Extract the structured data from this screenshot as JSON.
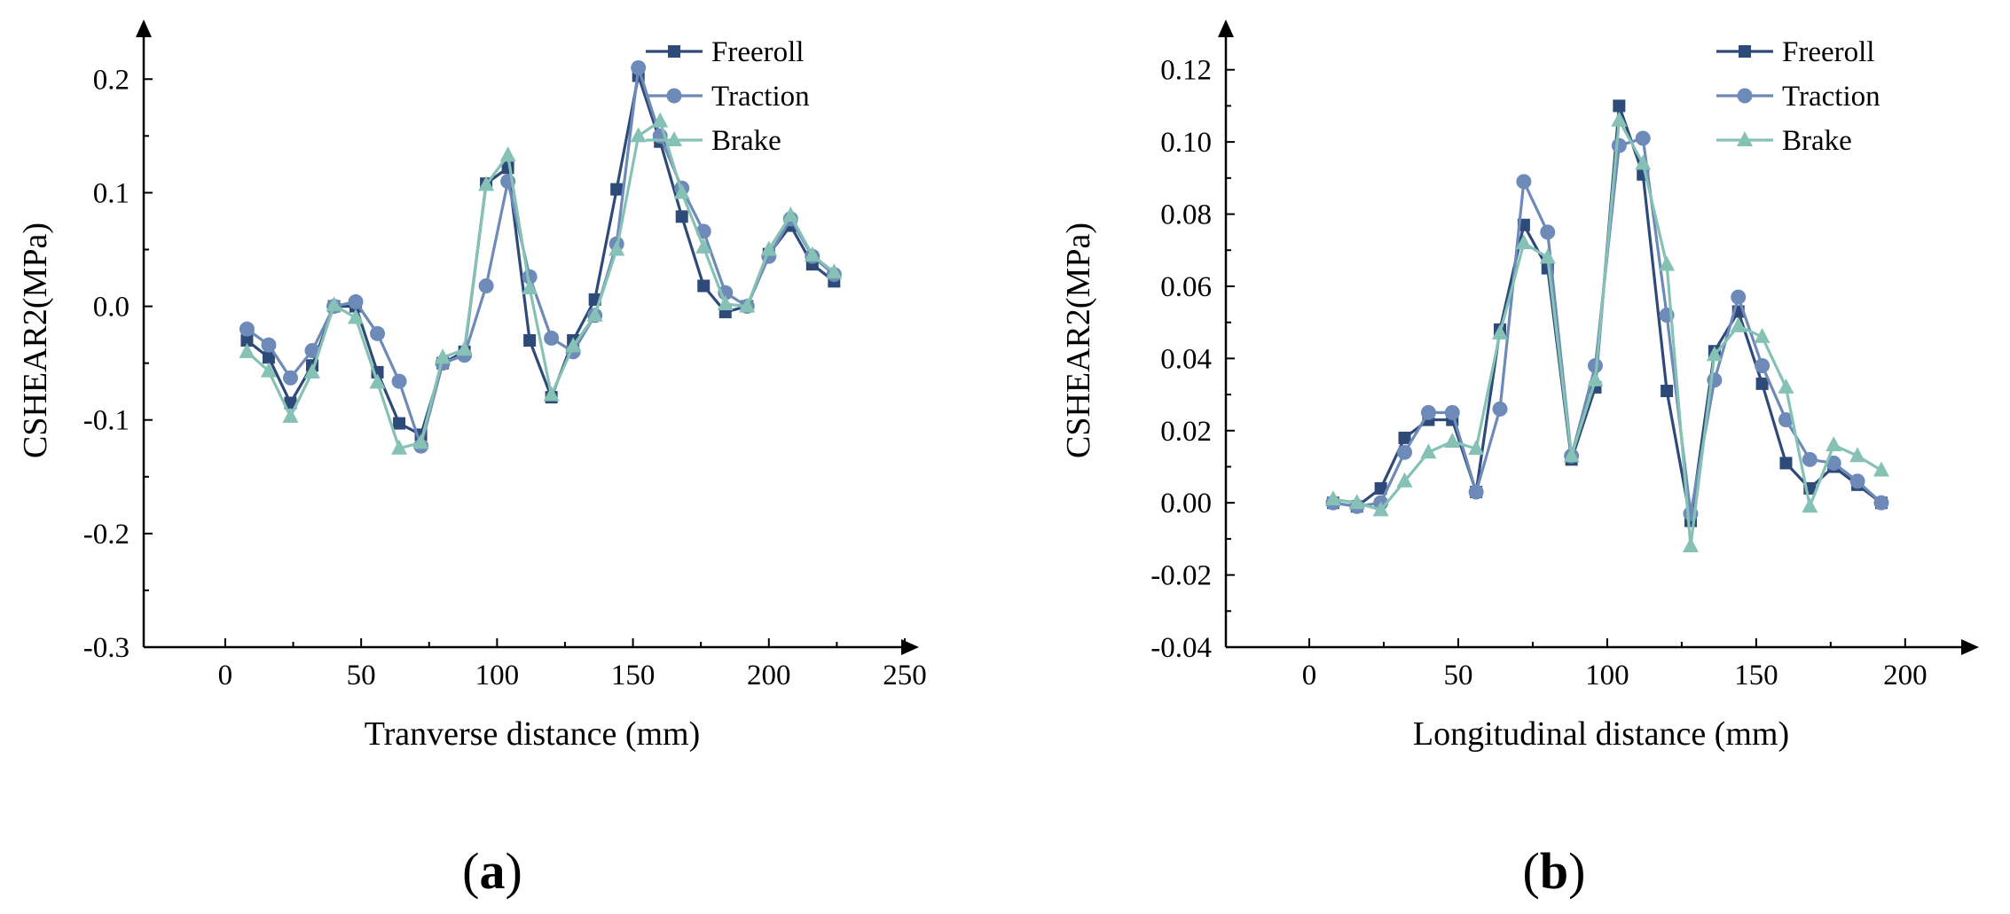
{
  "colors": {
    "freeroll": "#2e4a78",
    "traction": "#6d8ab8",
    "brake": "#85c1b4",
    "axis": "#000000"
  },
  "chart_data": [
    {
      "type": "line",
      "panel_label": {
        "open": "(",
        "letter": "a",
        "close": ")"
      },
      "xlabel": "Tranverse distance (mm)",
      "ylabel": "CSHEAR2(MPa)",
      "xlim": [
        -30,
        250
      ],
      "ylim": [
        -0.3,
        0.24
      ],
      "xticks": [
        0,
        50,
        100,
        150,
        200,
        250
      ],
      "xtick_labels": [
        "0",
        "50",
        "100",
        "150",
        "200",
        "250"
      ],
      "yticks": [
        -0.3,
        -0.2,
        -0.1,
        0.0,
        0.1,
        0.2
      ],
      "ytick_labels": [
        "-0.3",
        "-0.2",
        "-0.1",
        "0.0",
        "0.1",
        "0.2"
      ],
      "legend_position": "top-right",
      "x": [
        8,
        16,
        24,
        32,
        40,
        48,
        56,
        64,
        72,
        80,
        88,
        96,
        104,
        112,
        120,
        128,
        136,
        144,
        152,
        160,
        168,
        176,
        184,
        192,
        200,
        208,
        216,
        224
      ],
      "series": [
        {
          "name": "Freeroll",
          "marker": "square",
          "color_key": "freeroll",
          "values": [
            -0.03,
            -0.045,
            -0.085,
            -0.052,
            0.0,
            0.0,
            -0.058,
            -0.103,
            -0.113,
            -0.05,
            -0.04,
            0.108,
            0.122,
            -0.03,
            -0.08,
            -0.03,
            0.006,
            0.103,
            0.203,
            0.145,
            0.079,
            0.018,
            -0.005,
            0.0,
            0.046,
            0.071,
            0.037,
            0.022
          ]
        },
        {
          "name": "Traction",
          "marker": "circle",
          "color_key": "traction",
          "values": [
            -0.02,
            -0.034,
            -0.063,
            -0.039,
            0.0,
            0.004,
            -0.024,
            -0.066,
            -0.123,
            -0.05,
            -0.043,
            0.018,
            0.11,
            0.026,
            -0.028,
            -0.04,
            -0.008,
            0.055,
            0.21,
            0.15,
            0.104,
            0.066,
            0.012,
            0.0,
            0.044,
            0.077,
            0.044,
            0.028
          ]
        },
        {
          "name": "Brake",
          "marker": "triangle",
          "color_key": "brake",
          "values": [
            -0.04,
            -0.057,
            -0.097,
            -0.058,
            0.001,
            -0.01,
            -0.067,
            -0.125,
            -0.12,
            -0.045,
            -0.038,
            0.107,
            0.133,
            0.016,
            -0.078,
            -0.035,
            -0.008,
            0.05,
            0.15,
            0.163,
            0.1,
            0.052,
            0.002,
            0.0,
            0.05,
            0.08,
            0.045,
            0.03
          ]
        }
      ]
    },
    {
      "type": "line",
      "panel_label": {
        "open": "(",
        "letter": "b",
        "close": ")"
      },
      "xlabel": "Longitudinal distance (mm)",
      "ylabel": "CSHEAR2(MPa)",
      "xlim": [
        -28,
        220
      ],
      "ylim": [
        -0.04,
        0.13
      ],
      "xticks": [
        0,
        50,
        100,
        150,
        200
      ],
      "xtick_labels": [
        "0",
        "50",
        "100",
        "150",
        "200"
      ],
      "yticks": [
        -0.04,
        -0.02,
        0.0,
        0.02,
        0.04,
        0.06,
        0.08,
        0.1,
        0.12
      ],
      "ytick_labels": [
        "-0.04",
        "-0.02",
        "0.00",
        "0.02",
        "0.04",
        "0.06",
        "0.08",
        "0.10",
        "0.12"
      ],
      "legend_position": "top-right",
      "x": [
        8,
        16,
        24,
        32,
        40,
        48,
        56,
        64,
        72,
        80,
        88,
        96,
        104,
        112,
        120,
        128,
        136,
        144,
        152,
        160,
        168,
        176,
        184,
        192
      ],
      "series": [
        {
          "name": "Freeroll",
          "marker": "square",
          "color_key": "freeroll",
          "values": [
            0.0,
            -0.001,
            0.004,
            0.018,
            0.023,
            0.023,
            0.003,
            0.048,
            0.077,
            0.065,
            0.012,
            0.032,
            0.11,
            0.091,
            0.031,
            -0.005,
            0.042,
            0.053,
            0.033,
            0.011,
            0.004,
            0.01,
            0.005,
            0.0
          ]
        },
        {
          "name": "Traction",
          "marker": "circle",
          "color_key": "traction",
          "values": [
            0.0,
            -0.001,
            0.0,
            0.014,
            0.025,
            0.025,
            0.003,
            0.026,
            0.089,
            0.075,
            0.013,
            0.038,
            0.099,
            0.101,
            0.052,
            -0.003,
            0.034,
            0.057,
            0.038,
            0.023,
            0.012,
            0.011,
            0.006,
            0.0
          ]
        },
        {
          "name": "Brake",
          "marker": "triangle",
          "color_key": "brake",
          "values": [
            0.001,
            0.0,
            -0.002,
            0.006,
            0.014,
            0.017,
            0.015,
            0.047,
            0.072,
            0.068,
            0.013,
            0.034,
            0.106,
            0.094,
            0.066,
            -0.012,
            0.041,
            0.049,
            0.046,
            0.032,
            -0.001,
            0.016,
            0.013,
            0.009
          ]
        }
      ]
    }
  ]
}
